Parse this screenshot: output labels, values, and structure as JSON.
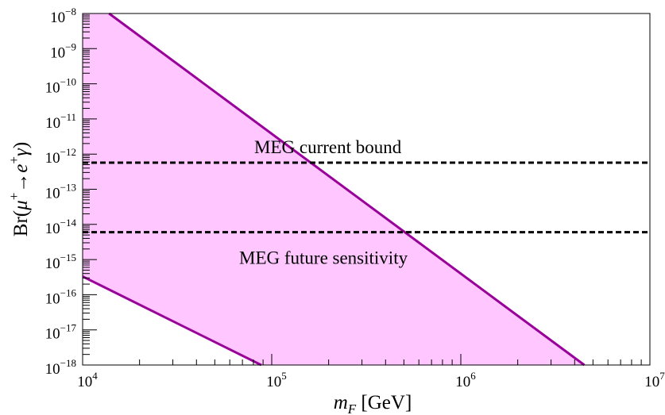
{
  "chart_data": {
    "type": "area",
    "xscale": "log",
    "yscale": "log",
    "xlim": [
      10000,
      10000000
    ],
    "ylim": [
      1e-18,
      1e-08
    ],
    "x_ticks": [
      {
        "value": 10000,
        "base": "10",
        "exp": "4"
      },
      {
        "value": 100000,
        "base": "10",
        "exp": "5"
      },
      {
        "value": 1000000,
        "base": "10",
        "exp": "6"
      },
      {
        "value": 10000000,
        "base": "10",
        "exp": "7"
      }
    ],
    "y_ticks": [
      {
        "value": 1e-18,
        "base": "10",
        "exp": "−18"
      },
      {
        "value": 1e-17,
        "base": "10",
        "exp": "−17"
      },
      {
        "value": 1e-16,
        "base": "10",
        "exp": "−16"
      },
      {
        "value": 1e-15,
        "base": "10",
        "exp": "−15"
      },
      {
        "value": 1e-14,
        "base": "10",
        "exp": "−14"
      },
      {
        "value": 1e-13,
        "base": "10",
        "exp": "−13"
      },
      {
        "value": 1e-12,
        "base": "10",
        "exp": "−12"
      },
      {
        "value": 1e-11,
        "base": "10",
        "exp": "−11"
      },
      {
        "value": 1e-10,
        "base": "10",
        "exp": "−10"
      },
      {
        "value": 1e-09,
        "base": "10",
        "exp": "−9"
      },
      {
        "value": 1e-08,
        "base": "10",
        "exp": "−8"
      }
    ],
    "xlabel": {
      "main": "m",
      "sub": "F",
      "rest": " [GeV]"
    },
    "ylabel": {
      "prefix": "Br(",
      "mu": "μ",
      "sup1": "+",
      "arrow": "→",
      "e": "e",
      "sup2": "+",
      "gamma": "γ",
      "suffix": ")"
    },
    "band": {
      "fill_color": "#ffc6ff",
      "line_color": "#990099",
      "upper": {
        "x": [
          13800,
          4500000
        ],
        "y": [
          1e-08,
          1e-18
        ]
      },
      "lower": {
        "x": [
          10000,
          88000
        ],
        "y": [
          3.3e-16,
          1e-18
        ]
      }
    },
    "hlines": [
      {
        "y": 5.7e-13,
        "label": "MEG current bound",
        "style": "dashed",
        "color": "#000000"
      },
      {
        "y": 6e-15,
        "label": "MEG future sensitivity",
        "style": "dashed",
        "color": "#000000"
      }
    ],
    "grid": false
  }
}
